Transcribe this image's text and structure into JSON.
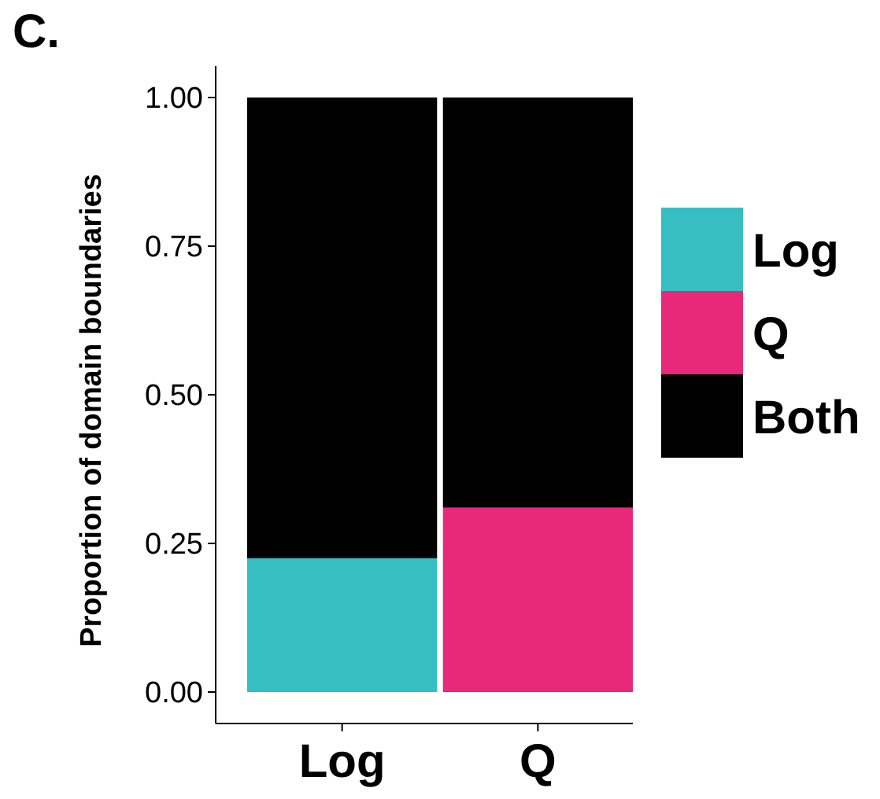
{
  "chart_data": {
    "type": "bar",
    "stacked": true,
    "ylabel": "Proportion of domain boundaries",
    "annotations": [
      "C."
    ],
    "categories": [
      "Log",
      "Q"
    ],
    "series": [
      {
        "name": "Log",
        "color": "#37bec2",
        "values": [
          0.225,
          0
        ]
      },
      {
        "name": "Q",
        "color": "#e8297a",
        "values": [
          0,
          0.31
        ]
      },
      {
        "name": "Both",
        "color": "#000000",
        "values": [
          0.775,
          0.69
        ]
      }
    ],
    "ylim": [
      0,
      1
    ],
    "yticks": [
      {
        "value": 0,
        "label": "0.00"
      },
      {
        "value": 0.25,
        "label": "0.25"
      },
      {
        "value": 0.5,
        "label": "0.50"
      },
      {
        "value": 0.75,
        "label": "0.75"
      },
      {
        "value": 1,
        "label": "1.00"
      }
    ],
    "grid": false,
    "legend": "right"
  }
}
